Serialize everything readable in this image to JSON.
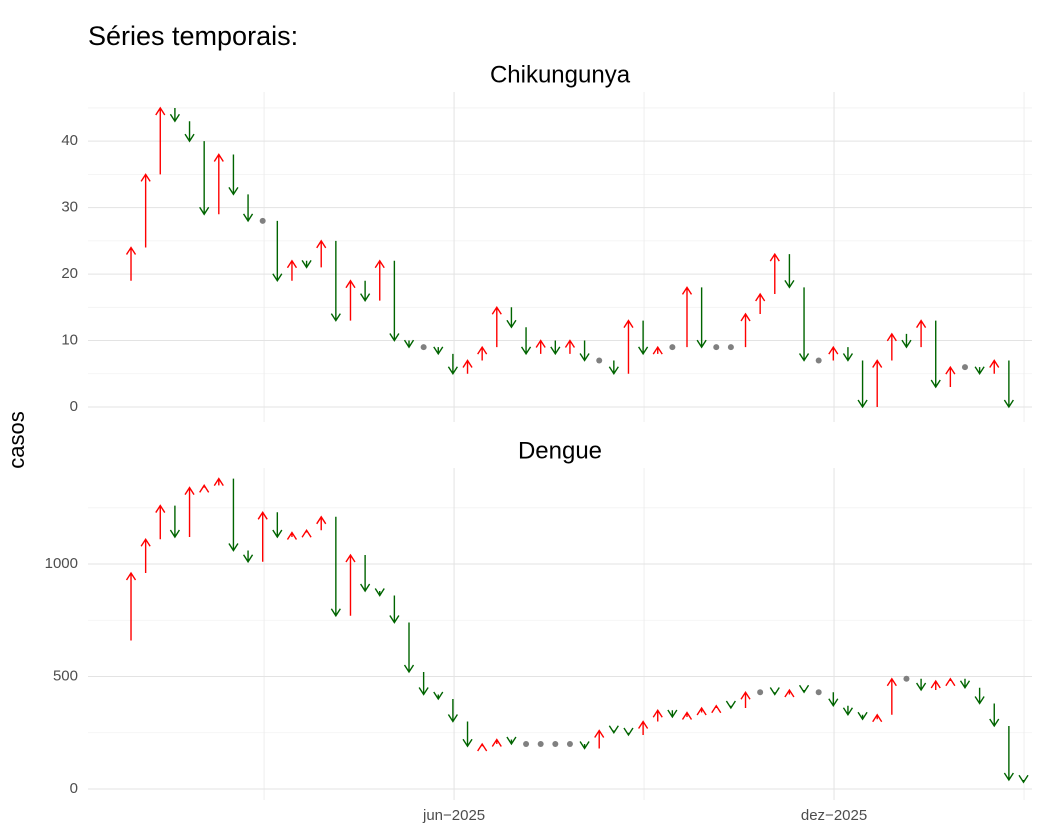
{
  "title": "Séries temporais:",
  "ylabel": "casos",
  "chart_data": [
    {
      "type": "arrow",
      "title": "Chikungunya",
      "x": [
        -1,
        0,
        1,
        2,
        3,
        4,
        5,
        6,
        7,
        8,
        9,
        10,
        11,
        12,
        13,
        14,
        15,
        16,
        17,
        18,
        19,
        20,
        21,
        22,
        23,
        24,
        25,
        26,
        27,
        28,
        29,
        30,
        31,
        32,
        33,
        34,
        35,
        36,
        37,
        38,
        39,
        40,
        41,
        42,
        43,
        44,
        45,
        46,
        47,
        48,
        49,
        50,
        51,
        52,
        53,
        54,
        55,
        56,
        57,
        58,
        59,
        60,
        61
      ],
      "values": [
        19,
        24,
        35,
        45,
        43,
        40,
        29,
        38,
        32,
        28,
        28,
        19,
        22,
        21,
        25,
        13,
        19,
        16,
        22,
        10,
        9,
        9,
        8,
        5,
        7,
        9,
        15,
        12,
        8,
        10,
        8,
        10,
        7,
        7,
        5,
        13,
        8,
        9,
        9,
        18,
        9,
        9,
        9,
        14,
        17,
        23,
        18,
        7,
        7,
        9,
        7,
        0,
        7,
        11,
        9,
        13,
        3,
        6,
        6,
        5,
        7,
        0,
        null
      ],
      "up_color": "#ff0000",
      "down_color": "#006400",
      "flat_color": "#808080",
      "xlim": [
        -2.94,
        61.58
      ],
      "ylim": [
        -2.26,
        47.4
      ],
      "yticks": [
        0,
        10,
        20,
        30,
        40
      ],
      "grid": true
    },
    {
      "type": "arrow",
      "title": "Dengue",
      "x": [
        -1,
        0,
        1,
        2,
        3,
        4,
        5,
        6,
        7,
        8,
        9,
        10,
        11,
        12,
        13,
        14,
        15,
        16,
        17,
        18,
        19,
        20,
        21,
        22,
        23,
        24,
        25,
        26,
        27,
        28,
        29,
        30,
        31,
        32,
        33,
        34,
        35,
        36,
        37,
        38,
        39,
        40,
        41,
        42,
        43,
        44,
        45,
        46,
        47,
        48,
        49,
        50,
        51,
        52,
        53,
        54,
        55,
        56,
        57,
        58,
        59,
        60,
        61
      ],
      "values": [
        660,
        960,
        1110,
        1260,
        1120,
        1340,
        1350,
        1380,
        1060,
        1010,
        1230,
        1120,
        1140,
        1150,
        1210,
        770,
        1040,
        880,
        860,
        740,
        520,
        420,
        400,
        300,
        190,
        200,
        220,
        200,
        200,
        200,
        200,
        200,
        180,
        260,
        250,
        240,
        300,
        350,
        320,
        340,
        360,
        370,
        360,
        430,
        430,
        420,
        440,
        430,
        430,
        370,
        330,
        310,
        330,
        490,
        490,
        440,
        480,
        490,
        450,
        380,
        280,
        40,
        30
      ],
      "up_color": "#ff0000",
      "down_color": "#006400",
      "flat_color": "#808080",
      "xlim": [
        -2.94,
        61.58
      ],
      "ylim": [
        -49,
        1427
      ],
      "yticks": [
        0,
        500,
        1000
      ],
      "xticks": [
        {
          "value": 22.08,
          "label": "jun−2025"
        },
        {
          "value": 48.05,
          "label": "dez−2025"
        }
      ],
      "grid": true
    }
  ]
}
